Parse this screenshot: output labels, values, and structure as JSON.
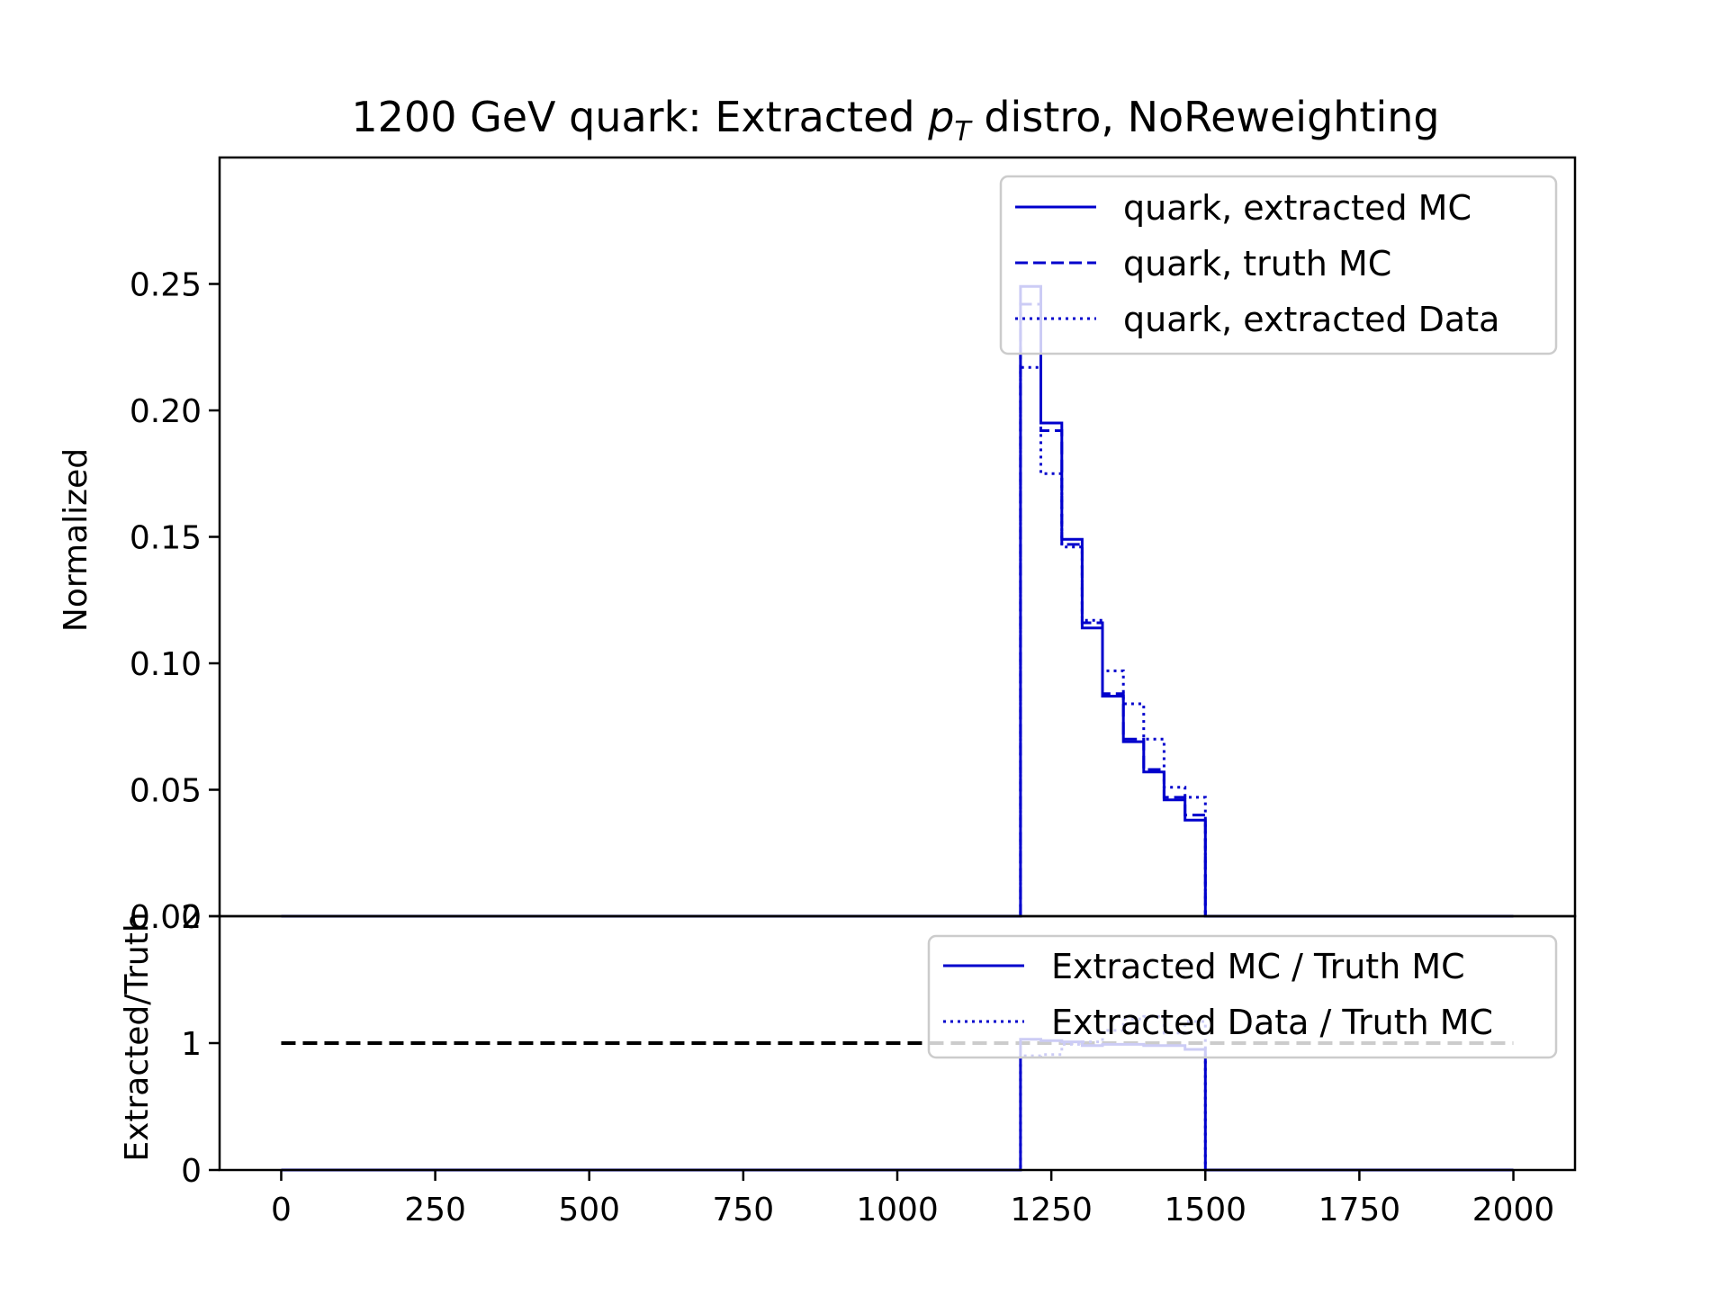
{
  "chart_data": [
    {
      "type": "line",
      "panel": "top",
      "title": "1200 GeV quark: Extracted p_T distro, NoReweighting",
      "title_parts": {
        "before": "1200 GeV quark: Extracted ",
        "p": "p",
        "sub": "T",
        "after": " distro, NoReweighting"
      },
      "xlabel": "",
      "ylabel": "Normalized",
      "xlim": [
        -100,
        2100
      ],
      "ylim": [
        0,
        0.3
      ],
      "yticks": [
        {
          "value": 0.0,
          "label": "0.00"
        },
        {
          "value": 0.05,
          "label": "0.05"
        },
        {
          "value": 0.1,
          "label": "0.10"
        },
        {
          "value": 0.15,
          "label": "0.15"
        },
        {
          "value": 0.2,
          "label": "0.20"
        },
        {
          "value": 0.25,
          "label": "0.25"
        }
      ],
      "grid": false,
      "legend_position": "top-right",
      "bin_edges": [
        0,
        1200,
        1233,
        1267,
        1300,
        1333,
        1367,
        1400,
        1433,
        1467,
        1500,
        2000
      ],
      "series": [
        {
          "name": "quark, extracted MC",
          "style": "solid",
          "color": "#0000cc",
          "values": [
            0,
            0.249,
            0.195,
            0.149,
            0.114,
            0.087,
            0.069,
            0.057,
            0.046,
            0.038,
            0
          ]
        },
        {
          "name": "quark, truth MC",
          "style": "dashed",
          "color": "#0000cc",
          "values": [
            0,
            0.242,
            0.192,
            0.147,
            0.116,
            0.088,
            0.07,
            0.058,
            0.047,
            0.04,
            0
          ]
        },
        {
          "name": "quark, extracted Data",
          "style": "dotted",
          "color": "#0000cc",
          "values": [
            0,
            0.217,
            0.175,
            0.146,
            0.117,
            0.097,
            0.084,
            0.07,
            0.051,
            0.047,
            0
          ]
        }
      ]
    },
    {
      "type": "line",
      "panel": "bottom",
      "xlabel": "",
      "ylabel": "Extracted/Truth",
      "xlim": [
        -100,
        2100
      ],
      "ylim": [
        0,
        2
      ],
      "xticks": [
        {
          "value": 0,
          "label": "0"
        },
        {
          "value": 250,
          "label": "250"
        },
        {
          "value": 500,
          "label": "500"
        },
        {
          "value": 750,
          "label": "750"
        },
        {
          "value": 1000,
          "label": "1000"
        },
        {
          "value": 1250,
          "label": "1250"
        },
        {
          "value": 1500,
          "label": "1500"
        },
        {
          "value": 1750,
          "label": "1750"
        },
        {
          "value": 2000,
          "label": "2000"
        }
      ],
      "yticks": [
        {
          "value": 0,
          "label": "0"
        },
        {
          "value": 1,
          "label": "1"
        },
        {
          "value": 2,
          "label": "2"
        }
      ],
      "grid": false,
      "legend_position": "top-right",
      "reference_line": {
        "y": 1,
        "x_range": [
          0,
          2000
        ],
        "style": "dashed",
        "color": "#000000"
      },
      "bin_edges": [
        0,
        1200,
        1233,
        1267,
        1300,
        1333,
        1367,
        1400,
        1433,
        1467,
        1500,
        2000
      ],
      "series": [
        {
          "name": "Extracted MC / Truth MC",
          "style": "solid",
          "color": "#0000cc",
          "values": [
            0,
            1.03,
            1.02,
            1.01,
            0.98,
            0.99,
            0.99,
            0.98,
            0.98,
            0.95,
            0
          ]
        },
        {
          "name": "Extracted Data / Truth MC",
          "style": "dotted",
          "color": "#0000cc",
          "values": [
            0,
            0.9,
            0.91,
            0.99,
            1.01,
            1.1,
            1.19,
            1.21,
            1.08,
            1.17,
            0
          ]
        }
      ]
    }
  ]
}
